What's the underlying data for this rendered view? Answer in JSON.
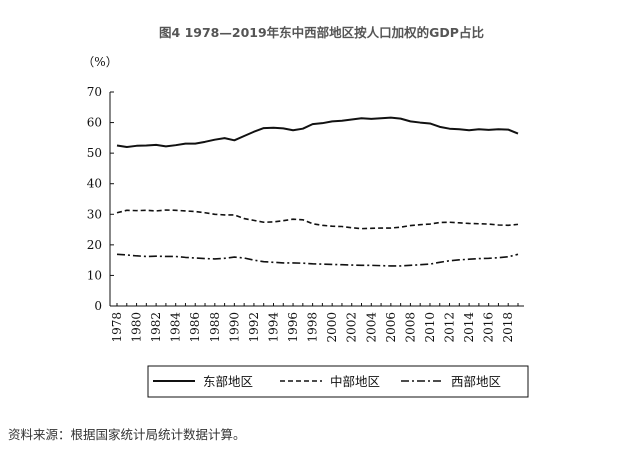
{
  "chart_title": "图4 1978—2019年东中西部地区按人口加权的GDP占比",
  "source_note": "资料来源：根据国家统计局统计数据计算。",
  "chart_data": {
    "type": "line",
    "title": "图4 1978—2019年东中西部地区按人口加权的GDP占比",
    "ylabel": "（%）",
    "xlabel": "",
    "ylim": [
      0,
      70
    ],
    "xlim": [
      1978,
      2019
    ],
    "yticks": [
      0,
      10,
      20,
      30,
      40,
      50,
      60,
      70
    ],
    "xticks": [
      1978,
      1980,
      1982,
      1984,
      1986,
      1988,
      1990,
      1992,
      1994,
      1996,
      1998,
      2000,
      2002,
      2004,
      2006,
      2008,
      2010,
      2012,
      2014,
      2016,
      2018
    ],
    "grid": false,
    "legend_position": "bottom",
    "x": [
      1978,
      1979,
      1980,
      1981,
      1982,
      1983,
      1984,
      1985,
      1986,
      1987,
      1988,
      1989,
      1990,
      1991,
      1992,
      1993,
      1994,
      1995,
      1996,
      1997,
      1998,
      1999,
      2000,
      2001,
      2002,
      2003,
      2004,
      2005,
      2006,
      2007,
      2008,
      2009,
      2010,
      2011,
      2012,
      2013,
      2014,
      2015,
      2016,
      2017,
      2018,
      2019
    ],
    "series": [
      {
        "name": "东部地区",
        "style": "solid",
        "values": [
          52.5,
          52.0,
          52.4,
          52.5,
          52.7,
          52.2,
          52.6,
          53.1,
          53.1,
          53.7,
          54.4,
          54.9,
          54.2,
          55.6,
          57.0,
          58.2,
          58.3,
          58.1,
          57.5,
          58.0,
          59.5,
          59.8,
          60.4,
          60.6,
          61.0,
          61.4,
          61.2,
          61.4,
          61.6,
          61.3,
          60.4,
          60.0,
          59.7,
          58.6,
          58.0,
          57.8,
          57.5,
          57.8,
          57.6,
          57.8,
          57.7,
          56.4
        ]
      },
      {
        "name": "中部地区",
        "style": "dashed",
        "values": [
          30.5,
          31.3,
          31.2,
          31.3,
          31.1,
          31.4,
          31.3,
          31.1,
          30.9,
          30.5,
          30.0,
          29.8,
          29.8,
          28.6,
          28.0,
          27.4,
          27.5,
          27.9,
          28.4,
          28.2,
          26.9,
          26.4,
          26.1,
          26.0,
          25.6,
          25.3,
          25.4,
          25.5,
          25.5,
          25.8,
          26.3,
          26.6,
          26.8,
          27.3,
          27.4,
          27.2,
          27.0,
          26.9,
          26.8,
          26.5,
          26.4,
          26.7
        ]
      },
      {
        "name": "西部地区",
        "style": "dashdot",
        "values": [
          16.9,
          16.7,
          16.4,
          16.2,
          16.3,
          16.2,
          16.2,
          15.9,
          15.7,
          15.5,
          15.4,
          15.6,
          16.0,
          15.7,
          15.0,
          14.5,
          14.3,
          14.1,
          14.1,
          14.0,
          13.8,
          13.7,
          13.6,
          13.5,
          13.4,
          13.3,
          13.3,
          13.2,
          13.1,
          13.1,
          13.3,
          13.5,
          13.7,
          14.3,
          14.8,
          15.1,
          15.3,
          15.5,
          15.6,
          15.8,
          16.1,
          16.9
        ]
      }
    ],
    "colors": {
      "line": "#111111",
      "axis": "#111111"
    }
  }
}
